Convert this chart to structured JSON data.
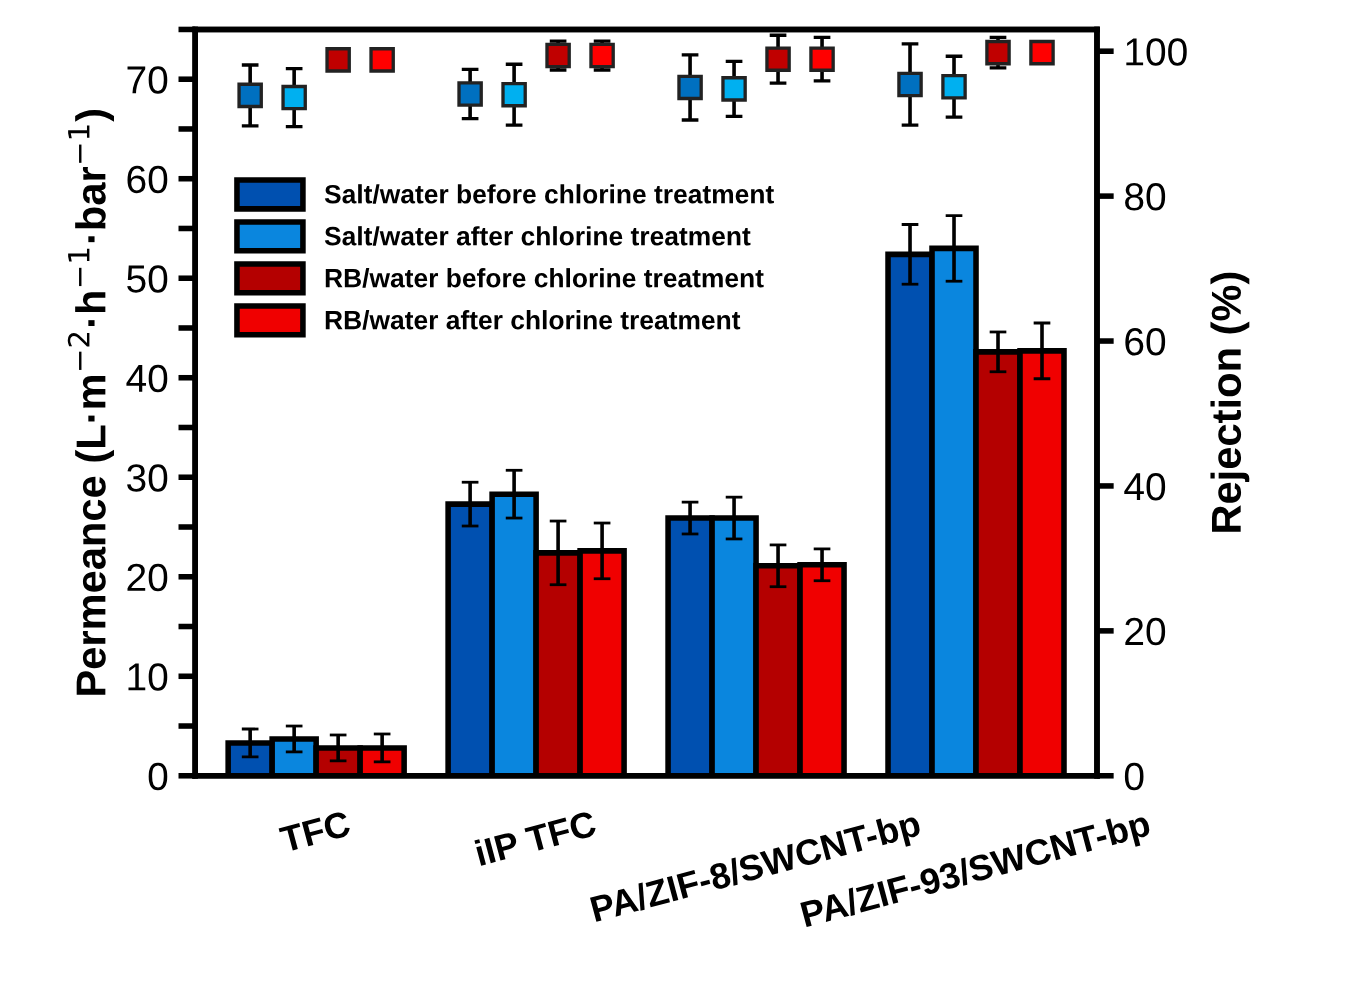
{
  "chart_data": {
    "type": "bar",
    "xlabel": null,
    "ylabel": "Permeance (L·m$^{−2}$·h$^{−1}$·bar$^{−1}$)",
    "y2label": "Rejection (%)",
    "categories": [
      "TFC",
      "iIP TFC",
      "PA/ZIF-8/SWCNT-bp",
      "PA/ZIF-93/SWCNT-bp"
    ],
    "ylim": [
      0,
      75
    ],
    "yticks": [
      0,
      {
        "value": 5,
        "label": null
      },
      10,
      {
        "value": 15,
        "label": null
      },
      20,
      {
        "value": 25,
        "label": null
      },
      30,
      {
        "value": 35,
        "label": null
      },
      40,
      {
        "value": 45,
        "label": null
      },
      50,
      {
        "value": 55,
        "label": null
      },
      60,
      {
        "value": 65,
        "label": null
      },
      70,
      {
        "value": 75,
        "label": null
      }
    ],
    "y2lim": [
      0,
      103
    ],
    "y2ticks": [
      0,
      20,
      40,
      60,
      80,
      100
    ],
    "legend": "top left",
    "grid": false,
    "series": [
      {
        "name": "Salt/water before chlorine treatment",
        "color": "#0050b0",
        "values": [
          3.3,
          27.3,
          25.9,
          52.4
        ],
        "errors": [
          1.4,
          2.2,
          1.6,
          3.0
        ]
      },
      {
        "name": "Salt/water after chlorine treatment",
        "color": "#0a86de",
        "values": [
          3.7,
          28.3,
          25.9,
          53.0
        ],
        "errors": [
          1.3,
          2.4,
          2.1,
          3.3
        ]
      },
      {
        "name": "RB/water before chlorine treatment",
        "color": "#b40000",
        "values": [
          2.8,
          22.4,
          21.1,
          42.6
        ],
        "errors": [
          1.3,
          3.2,
          2.1,
          2.0
        ]
      },
      {
        "name": "RB/water after chlorine treatment",
        "color": "#f00000",
        "values": [
          2.8,
          22.6,
          21.2,
          42.7
        ],
        "errors": [
          1.4,
          2.8,
          1.6,
          2.8
        ]
      },
      {
        "type": "scatter",
        "axis": "y2",
        "marker": "square",
        "color": "#0070c0",
        "x": [
          "TFC",
          "iIP TFC",
          "PA/ZIF-8/SWCNT-bp",
          "PA/ZIF-93/SWCNT-bp"
        ],
        "values": [
          93.9,
          94.1,
          95.0,
          95.4
        ],
        "errors": [
          4.2,
          3.4,
          4.5,
          5.6
        ]
      },
      {
        "type": "scatter",
        "axis": "y2",
        "marker": "square",
        "color": "#00b0f0",
        "x": [
          "TFC",
          "iIP TFC",
          "PA/ZIF-8/SWCNT-bp",
          "PA/ZIF-93/SWCNT-bp"
        ],
        "values": [
          93.6,
          94.0,
          94.8,
          95.1
        ],
        "errors": [
          4.0,
          4.2,
          3.8,
          4.2
        ]
      },
      {
        "type": "scatter",
        "axis": "y2",
        "marker": "square",
        "color": "#c00000",
        "x": [
          "TFC",
          "iIP TFC",
          "PA/ZIF-8/SWCNT-bp",
          "PA/ZIF-93/SWCNT-bp"
        ],
        "values": [
          98.8,
          99.4,
          98.9,
          99.8
        ],
        "errors": [
          null,
          2.0,
          3.3,
          2.1
        ]
      },
      {
        "type": "scatter",
        "axis": "y2",
        "marker": "square",
        "color": "#ff0000",
        "x": [
          "TFC",
          "iIP TFC",
          "PA/ZIF-8/SWCNT-bp",
          "PA/ZIF-93/SWCNT-bp"
        ],
        "values": [
          98.8,
          99.4,
          98.9,
          99.8
        ],
        "errors": [
          null,
          2.0,
          3.0,
          null
        ]
      }
    ]
  }
}
